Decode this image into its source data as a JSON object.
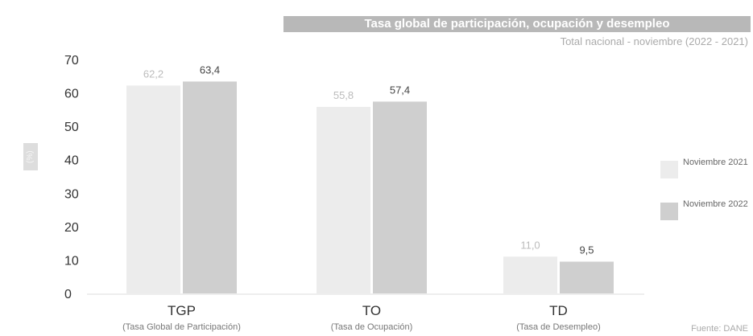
{
  "chart_data": {
    "type": "bar",
    "title": "Tasa global de participación, ocupación y desempleo",
    "subtitle": "Total nacional - noviembre (2022 - 2021)",
    "ylabel": "(%)",
    "ylim": [
      0,
      70
    ],
    "yticks": [
      "0",
      "10",
      "20",
      "30",
      "40",
      "50",
      "60",
      "70"
    ],
    "categories": [
      {
        "code": "TGP",
        "name": "(Tasa Global de Participación)"
      },
      {
        "code": "TO",
        "name": "(Tasa de Ocupación)"
      },
      {
        "code": "TD",
        "name": "(Tasa de Desempleo)"
      }
    ],
    "series": [
      {
        "name": "Noviembre 2021",
        "values": [
          62.2,
          55.8,
          11.0
        ],
        "labels": [
          "62,2",
          "55,8",
          "11,0"
        ],
        "color": "#ececec",
        "label_color": "#bcbcbc"
      },
      {
        "name": "Noviembre 2022",
        "values": [
          63.4,
          57.4,
          9.5
        ],
        "labels": [
          "63,4",
          "57,4",
          "9,5"
        ],
        "color": "#cfcfcf",
        "label_color": "#444444"
      }
    ],
    "legend": "right",
    "grid": false
  },
  "source": "Fuente: DANE"
}
